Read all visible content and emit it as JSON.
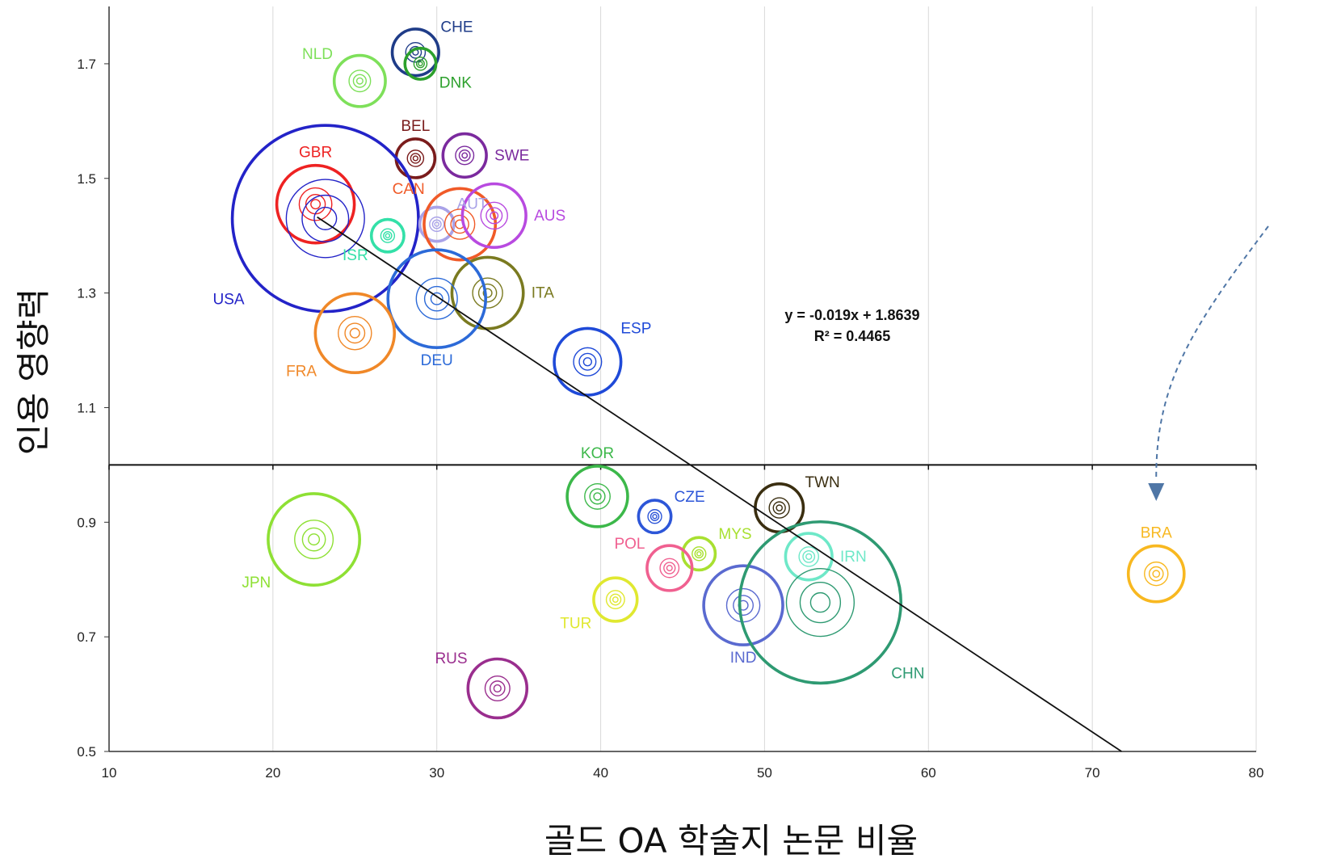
{
  "chart_data": {
    "type": "scatter",
    "title": "",
    "xlabel": "골드 OA 학술지 논문 비율",
    "ylabel": "인용 영향력",
    "xlim": [
      10,
      80
    ],
    "ylim": [
      0.5,
      1.8
    ],
    "x_ticks": [
      "10",
      "20",
      "30",
      "40",
      "50",
      "60",
      "70",
      "80"
    ],
    "y_ticks": [
      "0.5",
      "0.7",
      "0.9",
      "1.1",
      "1.3",
      "1.5",
      "1.7"
    ],
    "grid": true,
    "reference_line_y": 1.0,
    "trendline": {
      "slope": -0.019,
      "intercept": 1.8639,
      "equation": "y = -0.019x + 1.8639",
      "r_squared": "R² = 0.4465"
    },
    "points": [
      {
        "label": "CHE",
        "x": 28.7,
        "y": 1.72,
        "size": 3,
        "color": "#1f3c88"
      },
      {
        "label": "DNK",
        "x": 29.0,
        "y": 1.7,
        "size": 2,
        "color": "#2ca02c"
      },
      {
        "label": "NLD",
        "x": 25.3,
        "y": 1.67,
        "size": 3.3,
        "color": "#7ee05a"
      },
      {
        "label": "BEL",
        "x": 28.7,
        "y": 1.535,
        "size": 2.5,
        "color": "#7a1c1c"
      },
      {
        "label": "SWE",
        "x": 31.7,
        "y": 1.54,
        "size": 2.8,
        "color": "#7b2a9e"
      },
      {
        "label": "GBR",
        "x": 22.6,
        "y": 1.455,
        "size": 5,
        "color": "#ee2222"
      },
      {
        "label": "USA",
        "x": 23.2,
        "y": 1.43,
        "size": 12,
        "color": "#2323c8"
      },
      {
        "label": "AUT",
        "x": 30.0,
        "y": 1.42,
        "size": 2.2,
        "color": "#a9a2e8"
      },
      {
        "label": "CAN",
        "x": 31.4,
        "y": 1.42,
        "size": 4.6,
        "color": "#f05a28"
      },
      {
        "label": "AUS",
        "x": 33.5,
        "y": 1.435,
        "size": 4.1,
        "color": "#b84ae0"
      },
      {
        "label": "ISR",
        "x": 27.0,
        "y": 1.4,
        "size": 2.1,
        "color": "#33e0a8"
      },
      {
        "label": "ITA",
        "x": 33.1,
        "y": 1.3,
        "size": 4.6,
        "color": "#7a7a20"
      },
      {
        "label": "DEU",
        "x": 30.0,
        "y": 1.29,
        "size": 6.3,
        "color": "#2c6ad8"
      },
      {
        "label": "FRA",
        "x": 25.0,
        "y": 1.23,
        "size": 5.1,
        "color": "#f08828"
      },
      {
        "label": "ESP",
        "x": 39.2,
        "y": 1.18,
        "size": 4.3,
        "color": "#1f4ad8"
      },
      {
        "label": "KOR",
        "x": 39.8,
        "y": 0.945,
        "size": 3.9,
        "color": "#3cb84a"
      },
      {
        "label": "CZE",
        "x": 43.3,
        "y": 0.91,
        "size": 2.1,
        "color": "#2d56d8"
      },
      {
        "label": "TWN",
        "x": 50.9,
        "y": 0.925,
        "size": 3.1,
        "color": "#3a2e10"
      },
      {
        "label": "JPN",
        "x": 22.5,
        "y": 0.87,
        "size": 5.9,
        "color": "#8ee034"
      },
      {
        "label": "MYS",
        "x": 46.0,
        "y": 0.845,
        "size": 2.1,
        "color": "#a8e030"
      },
      {
        "label": "IRN",
        "x": 52.7,
        "y": 0.84,
        "size": 3.0,
        "color": "#6ee8c8"
      },
      {
        "label": "POL",
        "x": 44.2,
        "y": 0.82,
        "size": 2.9,
        "color": "#f06090"
      },
      {
        "label": "BRA",
        "x": 73.9,
        "y": 0.81,
        "size": 3.6,
        "color": "#f8b820"
      },
      {
        "label": "TUR",
        "x": 40.9,
        "y": 0.765,
        "size": 2.8,
        "color": "#e0e830"
      },
      {
        "label": "IND",
        "x": 48.7,
        "y": 0.755,
        "size": 5.1,
        "color": "#5a6ad0"
      },
      {
        "label": "CHN",
        "x": 53.4,
        "y": 0.76,
        "size": 10.4,
        "color": "#2e9a72"
      },
      {
        "label": "RUS",
        "x": 33.7,
        "y": 0.61,
        "size": 3.8,
        "color": "#9a2e8e"
      }
    ]
  }
}
